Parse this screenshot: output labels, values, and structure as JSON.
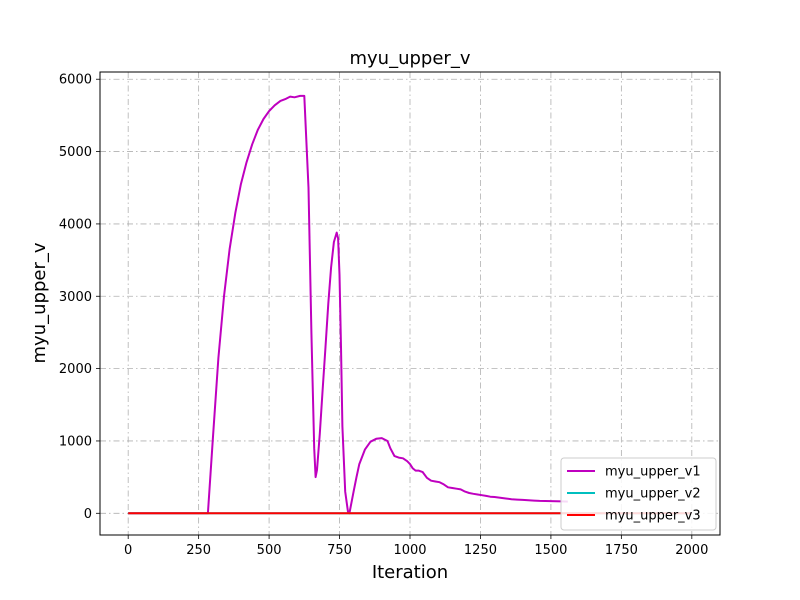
{
  "chart_data": {
    "type": "line",
    "title": "myu_upper_v",
    "xlabel": "Iteration",
    "ylabel": "myu_upper_v",
    "xlim": [
      -100,
      2100
    ],
    "ylim": [
      -300,
      6100
    ],
    "xticks": [
      0,
      250,
      500,
      750,
      1000,
      1250,
      1500,
      1750,
      2000
    ],
    "yticks": [
      0,
      1000,
      2000,
      3000,
      4000,
      5000,
      6000
    ],
    "grid": true,
    "legend_position": "lower-right",
    "series": [
      {
        "name": "myu_upper_v1",
        "color": "#bf00bf",
        "x": [
          0,
          283,
          300,
          320,
          340,
          360,
          380,
          400,
          420,
          440,
          460,
          480,
          500,
          520,
          540,
          560,
          575,
          590,
          610,
          625,
          640,
          650,
          660,
          665,
          670,
          680,
          690,
          700,
          710,
          720,
          730,
          740,
          745,
          750,
          755,
          760,
          770,
          780,
          785,
          790,
          800,
          810,
          820,
          840,
          860,
          880,
          900,
          920,
          930,
          945,
          960,
          975,
          990,
          1000,
          1010,
          1020,
          1030,
          1045,
          1060,
          1075,
          1090,
          1105,
          1120,
          1135,
          1150,
          1165,
          1180,
          1195,
          1210,
          1225,
          1240,
          1255,
          1270,
          1285,
          1300,
          1320,
          1340,
          1360,
          1380,
          1400,
          1420,
          1440,
          1460,
          1480,
          1500,
          1520,
          1540,
          1560
        ],
        "values": [
          0,
          0,
          1000,
          2150,
          3000,
          3650,
          4150,
          4550,
          4850,
          5100,
          5300,
          5450,
          5560,
          5640,
          5700,
          5730,
          5760,
          5750,
          5770,
          5770,
          4500,
          2500,
          900,
          500,
          600,
          1100,
          1700,
          2300,
          2900,
          3400,
          3750,
          3880,
          3800,
          3300,
          2300,
          1200,
          300,
          20,
          0,
          100,
          300,
          500,
          680,
          880,
          990,
          1030,
          1040,
          1000,
          900,
          790,
          770,
          760,
          720,
          680,
          620,
          590,
          590,
          570,
          490,
          450,
          440,
          430,
          400,
          360,
          350,
          340,
          330,
          300,
          280,
          270,
          260,
          250,
          240,
          230,
          225,
          215,
          205,
          195,
          190,
          185,
          180,
          175,
          172,
          170,
          168,
          166,
          164,
          162
        ]
      },
      {
        "name": "myu_upper_v2",
        "color": "#00bfbf",
        "x": [
          0,
          2000
        ],
        "values": [
          0,
          0
        ]
      },
      {
        "name": "myu_upper_v3",
        "color": "#ff0000",
        "x": [
          0,
          2000
        ],
        "values": [
          0,
          0
        ]
      }
    ]
  }
}
